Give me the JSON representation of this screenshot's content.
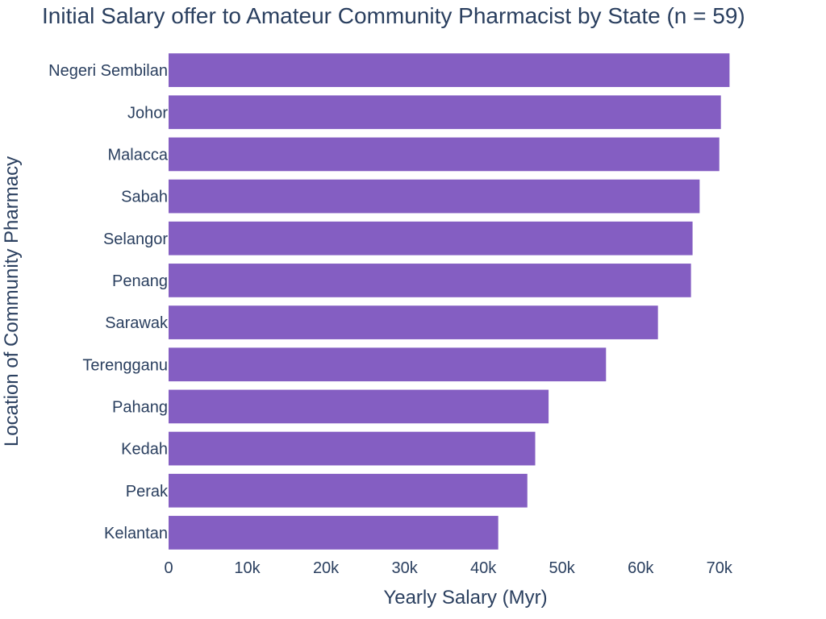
{
  "chart_data": {
    "type": "bar",
    "orientation": "horizontal",
    "title": "Initial Salary offer to Amateur Community Pharmacist by State (n = 59)",
    "xlabel": "Yearly Salary (Myr)",
    "ylabel": "Location of Community Pharmacy",
    "categories": [
      "Negeri Sembilan",
      "Johor",
      "Malacca",
      "Sabah",
      "Selangor",
      "Penang",
      "Sarawak",
      "Terengganu",
      "Pahang",
      "Kedah",
      "Perak",
      "Kelantan"
    ],
    "values": [
      71300,
      70200,
      70000,
      67500,
      66600,
      66400,
      62200,
      55600,
      48300,
      46600,
      45600,
      41900
    ],
    "xlim": [
      0,
      73000
    ],
    "xticks": [
      0,
      10000,
      20000,
      30000,
      40000,
      50000,
      60000,
      70000
    ],
    "xtick_labels": [
      "0",
      "10k",
      "20k",
      "30k",
      "40k",
      "50k",
      "60k",
      "70k"
    ],
    "bar_color": "#845ec2",
    "grid": false,
    "legend": "none"
  }
}
